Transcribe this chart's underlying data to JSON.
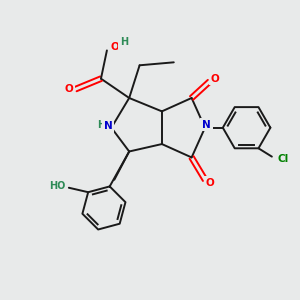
{
  "background_color": "#e8eaea",
  "fig_size": [
    3.0,
    3.0
  ],
  "dpi": 100,
  "atom_colors": {
    "O": "#ff0000",
    "N": "#0000cd",
    "Cl": "#008000",
    "HN": "#0000cd",
    "HO": "#2e8b57",
    "H": "#2e8b57",
    "C": "#000000"
  },
  "bond_color": "#1a1a1a",
  "bond_width": 1.4,
  "font_size_atom": 7.5
}
